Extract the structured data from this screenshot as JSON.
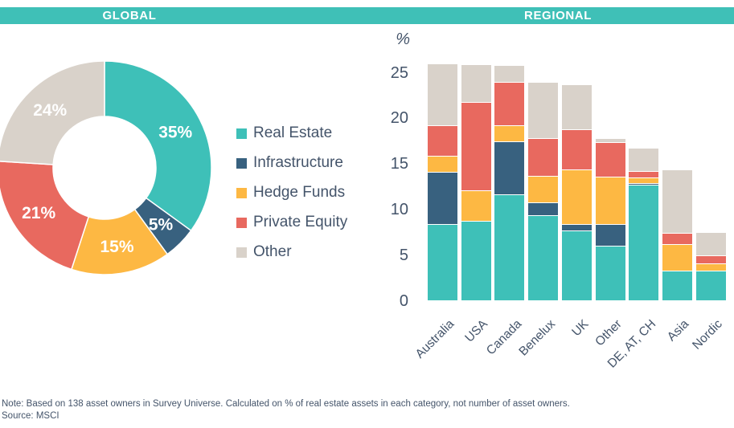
{
  "section_headers": {
    "global": "GLOBAL",
    "regional": "REGIONAL"
  },
  "colors": {
    "header_bar": "#3FC0B7",
    "real_estate": "#3EC0B8",
    "infrastructure": "#38617F",
    "hedge_funds": "#FDB843",
    "private_equity": "#E8695F",
    "other": "#D9D2CA",
    "text": "#44546A"
  },
  "legend": {
    "items": [
      {
        "label": "Real Estate",
        "color": "#3EC0B8"
      },
      {
        "label": "Infrastructure",
        "color": "#38617F"
      },
      {
        "label": "Hedge Funds",
        "color": "#FDB843"
      },
      {
        "label": "Private Equity",
        "color": "#E8695F"
      },
      {
        "label": "Other",
        "color": "#D9D2CA"
      }
    ]
  },
  "footer": {
    "note": "Note: Based on 138 asset owners in Survey Universe.  Calculated on % of real estate assets in each category, not number of asset owners.",
    "source": "Source:  MSCI"
  },
  "chart_data": [
    {
      "type": "pie",
      "subtype": "donut",
      "title": "GLOBAL",
      "labels": [
        "Real Estate",
        "Infrastructure",
        "Hedge Funds",
        "Private Equity",
        "Other"
      ],
      "values": [
        35,
        5,
        15,
        21,
        24
      ],
      "data_labels": [
        "35%",
        "5%",
        "15%",
        "21%",
        "24%"
      ],
      "colors": [
        "#3EC0B8",
        "#38617F",
        "#FDB843",
        "#E8695F",
        "#D9D2CA"
      ],
      "start_angle_deg": 0,
      "direction": "clockwise",
      "legend_position": "right"
    },
    {
      "type": "bar",
      "stacked": true,
      "title": "REGIONAL",
      "ylabel": "%",
      "ylim": [
        0,
        26
      ],
      "yticks": [
        0,
        5,
        10,
        15,
        20,
        25
      ],
      "grid": false,
      "categories": [
        "Australia",
        "USA",
        "Canada",
        "Benelux",
        "UK",
        "Other",
        "DE, AT, CH",
        "Asia",
        "Nordic"
      ],
      "series": [
        {
          "name": "Real Estate",
          "color": "#3EC0B8",
          "values": [
            8.4,
            8.8,
            11.7,
            9.4,
            7.7,
            6.0,
            12.7,
            3.3,
            3.3
          ]
        },
        {
          "name": "Infrastructure",
          "color": "#38617F",
          "values": [
            5.7,
            0,
            5.8,
            1.4,
            0.7,
            2.4,
            0.2,
            0,
            0
          ]
        },
        {
          "name": "Hedge Funds",
          "color": "#FDB843",
          "values": [
            1.8,
            3.3,
            1.7,
            2.9,
            6.0,
            5.2,
            0.6,
            2.9,
            0.8
          ]
        },
        {
          "name": "Private Equity",
          "color": "#E8695F",
          "values": [
            3.3,
            9.7,
            4.8,
            4.1,
            4.4,
            3.8,
            0.7,
            1.2,
            0.9
          ]
        },
        {
          "name": "Other",
          "color": "#D9D2CA",
          "values": [
            6.8,
            4.1,
            1.8,
            6.2,
            4.9,
            0.4,
            2.6,
            7.0,
            2.5
          ]
        }
      ]
    }
  ]
}
